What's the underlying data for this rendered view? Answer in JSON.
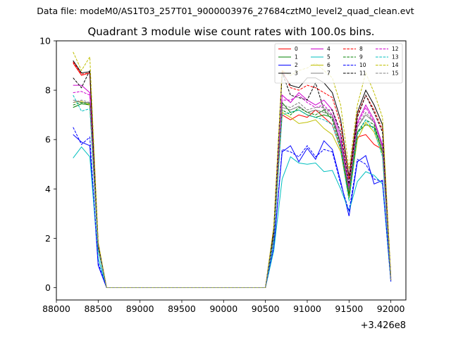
{
  "header": "Data file: modeM0/AS1T03_257T01_9000003976_27684cztM0_level2_quad_clean.evt",
  "chart_data": {
    "type": "line",
    "title": "Quadrant 3 module wise count rates with 100.0s bins.",
    "xlabel": "",
    "ylabel": "",
    "x_offset_label": "+3.426e8",
    "xlim": [
      88000,
      92180
    ],
    "ylim": [
      -0.5,
      10
    ],
    "xticks": [
      88000,
      88500,
      89000,
      89500,
      90000,
      90500,
      91000,
      91500,
      92000
    ],
    "yticks": [
      0,
      2,
      4,
      6,
      8,
      10
    ],
    "grid": false,
    "legend": "top-right, 4 columns",
    "x": [
      88200,
      88300,
      88400,
      88500,
      88600,
      88700,
      88800,
      88900,
      89000,
      89100,
      89200,
      89300,
      89400,
      89500,
      89600,
      89700,
      89800,
      89900,
      90000,
      90100,
      90200,
      90300,
      90400,
      90500,
      90600,
      90700,
      90800,
      90900,
      91000,
      91100,
      91200,
      91300,
      91400,
      91500,
      91600,
      91700,
      91800,
      91900,
      92000
    ],
    "series": [
      {
        "name": "0",
        "color": "#ff0000",
        "dash": "solid",
        "values": [
          9.1,
          8.6,
          8.7,
          1.7,
          0,
          0,
          0,
          0,
          0,
          0,
          0,
          0,
          0,
          0,
          0,
          0,
          0,
          0,
          0,
          0,
          0,
          0,
          0,
          0,
          2.2,
          7.0,
          6.8,
          7.0,
          6.9,
          7.2,
          6.9,
          6.6,
          5.6,
          3.7,
          6.1,
          6.2,
          5.8,
          5.6,
          0.3
        ]
      },
      {
        "name": "1",
        "color": "#008000",
        "dash": "solid",
        "values": [
          7.3,
          7.45,
          7.4,
          1.6,
          0,
          0,
          0,
          0,
          0,
          0,
          0,
          0,
          0,
          0,
          0,
          0,
          0,
          0,
          0,
          0,
          0,
          0,
          0,
          0,
          2.0,
          7.5,
          7.1,
          7.2,
          7.0,
          6.9,
          7.0,
          6.9,
          5.8,
          3.8,
          6.3,
          6.6,
          6.5,
          5.5,
          0.3
        ]
      },
      {
        "name": "2",
        "color": "#0000ff",
        "dash": "solid",
        "values": [
          6.2,
          5.9,
          5.75,
          0.9,
          0,
          0,
          0,
          0,
          0,
          0,
          0,
          0,
          0,
          0,
          0,
          0,
          0,
          0,
          0,
          0,
          0,
          0,
          0,
          0,
          1.6,
          5.5,
          5.75,
          5.1,
          5.65,
          5.2,
          5.95,
          5.6,
          4.3,
          2.9,
          5.1,
          5.35,
          4.2,
          4.35,
          0.25
        ]
      },
      {
        "name": "3",
        "color": "#000000",
        "dash": "solid",
        "values": [
          9.2,
          8.7,
          8.75,
          1.8,
          0,
          0,
          0,
          0,
          0,
          0,
          0,
          0,
          0,
          0,
          0,
          0,
          0,
          0,
          0,
          0,
          0,
          0,
          0,
          0,
          2.4,
          8.7,
          8.2,
          8.1,
          8.5,
          8.5,
          8.3,
          7.9,
          6.8,
          4.5,
          7.1,
          8.0,
          7.4,
          6.6,
          0.4
        ]
      },
      {
        "name": "4",
        "color": "#cc00cc",
        "dash": "solid",
        "values": [
          8.2,
          8.2,
          7.9,
          1.6,
          0,
          0,
          0,
          0,
          0,
          0,
          0,
          0,
          0,
          0,
          0,
          0,
          0,
          0,
          0,
          0,
          0,
          0,
          0,
          0,
          2.1,
          7.8,
          7.5,
          7.9,
          7.6,
          7.4,
          7.6,
          7.2,
          6.1,
          4.1,
          6.7,
          7.4,
          6.8,
          5.8,
          0.35
        ]
      },
      {
        "name": "5",
        "color": "#00bfbf",
        "dash": "solid",
        "values": [
          5.25,
          5.7,
          5.3,
          1.2,
          0,
          0,
          0,
          0,
          0,
          0,
          0,
          0,
          0,
          0,
          0,
          0,
          0,
          0,
          0,
          0,
          0,
          0,
          0,
          0,
          1.5,
          4.4,
          5.3,
          5.05,
          5.0,
          5.05,
          4.7,
          4.75,
          4.0,
          3.1,
          4.3,
          4.7,
          4.55,
          4.2,
          0.25
        ]
      },
      {
        "name": "6",
        "color": "#bfbf00",
        "dash": "solid",
        "values": [
          7.5,
          7.55,
          7.4,
          1.6,
          0,
          0,
          0,
          0,
          0,
          0,
          0,
          0,
          0,
          0,
          0,
          0,
          0,
          0,
          0,
          0,
          0,
          0,
          0,
          0,
          2.0,
          7.1,
          6.9,
          6.65,
          6.7,
          6.8,
          6.45,
          6.2,
          5.5,
          3.6,
          6.0,
          6.7,
          6.3,
          5.4,
          0.3
        ]
      },
      {
        "name": "7",
        "color": "#808080",
        "dash": "solid",
        "values": [
          7.6,
          7.5,
          7.5,
          1.65,
          0,
          0,
          0,
          0,
          0,
          0,
          0,
          0,
          0,
          0,
          0,
          0,
          0,
          0,
          0,
          0,
          0,
          0,
          0,
          0,
          2.1,
          7.3,
          7.2,
          7.35,
          7.1,
          7.2,
          7.1,
          7.0,
          5.9,
          4.0,
          6.5,
          7.0,
          6.7,
          5.7,
          0.3
        ]
      },
      {
        "name": "8",
        "color": "#ff0000",
        "dash": "dashed",
        "values": [
          9.15,
          8.65,
          8.7,
          1.75,
          0,
          0,
          0,
          0,
          0,
          0,
          0,
          0,
          0,
          0,
          0,
          0,
          0,
          0,
          0,
          0,
          0,
          0,
          0,
          0,
          2.3,
          8.8,
          8.1,
          8.0,
          8.2,
          8.1,
          7.9,
          7.7,
          6.6,
          4.4,
          7.0,
          7.8,
          7.2,
          6.4,
          0.4
        ]
      },
      {
        "name": "9",
        "color": "#008000",
        "dash": "dashed",
        "values": [
          7.4,
          7.5,
          7.45,
          1.6,
          0,
          0,
          0,
          0,
          0,
          0,
          0,
          0,
          0,
          0,
          0,
          0,
          0,
          0,
          0,
          0,
          0,
          0,
          0,
          0,
          2.0,
          7.2,
          7.0,
          7.3,
          7.1,
          7.0,
          7.2,
          6.8,
          5.7,
          3.7,
          6.3,
          6.8,
          6.6,
          5.5,
          0.3
        ]
      },
      {
        "name": "10",
        "color": "#0000ff",
        "dash": "dashed",
        "values": [
          6.5,
          5.8,
          6.1,
          1.0,
          0,
          0,
          0,
          0,
          0,
          0,
          0,
          0,
          0,
          0,
          0,
          0,
          0,
          0,
          0,
          0,
          0,
          0,
          0,
          0,
          1.7,
          5.6,
          5.5,
          5.3,
          5.75,
          5.3,
          5.6,
          5.5,
          4.2,
          3.1,
          5.2,
          5.0,
          4.4,
          4.3,
          0.25
        ]
      },
      {
        "name": "11",
        "color": "#000000",
        "dash": "dashed",
        "values": [
          8.5,
          8.1,
          8.8,
          1.7,
          0,
          0,
          0,
          0,
          0,
          0,
          0,
          0,
          0,
          0,
          0,
          0,
          0,
          0,
          0,
          0,
          0,
          0,
          0,
          0,
          2.3,
          8.7,
          7.8,
          7.7,
          7.6,
          8.3,
          7.2,
          7.2,
          6.3,
          4.2,
          6.9,
          7.8,
          7.1,
          6.3,
          0.4
        ]
      },
      {
        "name": "12",
        "color": "#cc00cc",
        "dash": "dashed",
        "values": [
          7.9,
          7.95,
          7.8,
          1.6,
          0,
          0,
          0,
          0,
          0,
          0,
          0,
          0,
          0,
          0,
          0,
          0,
          0,
          0,
          0,
          0,
          0,
          0,
          0,
          0,
          2.1,
          7.6,
          7.6,
          7.8,
          7.5,
          7.3,
          7.4,
          7.0,
          5.9,
          4.0,
          6.6,
          7.3,
          6.7,
          5.7,
          0.35
        ]
      },
      {
        "name": "13",
        "color": "#00bfbf",
        "dash": "dashed",
        "values": [
          7.8,
          7.15,
          7.25,
          1.5,
          0,
          0,
          0,
          0,
          0,
          0,
          0,
          0,
          0,
          0,
          0,
          0,
          0,
          0,
          0,
          0,
          0,
          0,
          0,
          0,
          1.9,
          7.0,
          7.1,
          7.2,
          7.0,
          6.9,
          6.8,
          6.6,
          5.6,
          3.5,
          6.2,
          6.8,
          6.4,
          5.3,
          0.3
        ]
      },
      {
        "name": "14",
        "color": "#bfbf00",
        "dash": "dashed",
        "values": [
          9.55,
          8.8,
          9.35,
          1.85,
          0,
          0,
          0,
          0,
          0,
          0,
          0,
          0,
          0,
          0,
          0,
          0,
          0,
          0,
          0,
          0,
          0,
          0,
          0,
          0,
          2.5,
          8.8,
          8.6,
          8.8,
          8.9,
          9.1,
          8.8,
          8.5,
          7.4,
          4.8,
          7.4,
          8.7,
          7.9,
          6.9,
          0.45
        ]
      },
      {
        "name": "15",
        "color": "#808080",
        "dash": "dashed",
        "values": [
          7.5,
          7.6,
          7.5,
          1.65,
          0,
          0,
          0,
          0,
          0,
          0,
          0,
          0,
          0,
          0,
          0,
          0,
          0,
          0,
          0,
          0,
          0,
          0,
          0,
          0,
          2.1,
          7.4,
          7.3,
          7.5,
          7.2,
          7.3,
          7.3,
          6.9,
          5.8,
          3.9,
          6.5,
          7.1,
          6.7,
          5.6,
          0.3
        ]
      }
    ]
  }
}
